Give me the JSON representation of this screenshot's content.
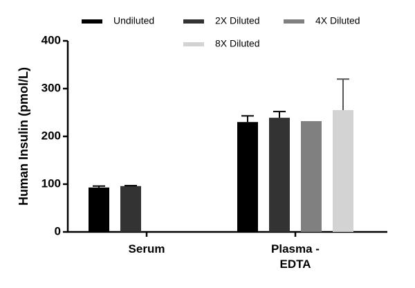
{
  "chart_data": {
    "type": "bar",
    "ylabel": "Human Insulin (pmol/L)",
    "categories": [
      "Serum",
      "Plasma - EDTA"
    ],
    "series": [
      {
        "name": "Undiluted",
        "color": "#000000",
        "values": [
          93,
          230
        ],
        "errors": [
          3,
          13
        ]
      },
      {
        "name": "2X Diluted",
        "color": "#333333",
        "values": [
          96,
          239
        ],
        "errors": [
          1,
          13
        ]
      },
      {
        "name": "4X Diluted",
        "color": "#808080",
        "values": [
          null,
          232
        ],
        "errors": [
          null,
          null
        ]
      },
      {
        "name": "8X Diluted",
        "color": "#d3d3d3",
        "values": [
          null,
          255
        ],
        "errors": [
          null,
          65
        ]
      }
    ],
    "ylim": [
      0,
      400
    ],
    "yticks": [
      0,
      100,
      200,
      300,
      400
    ],
    "legend": "top"
  }
}
